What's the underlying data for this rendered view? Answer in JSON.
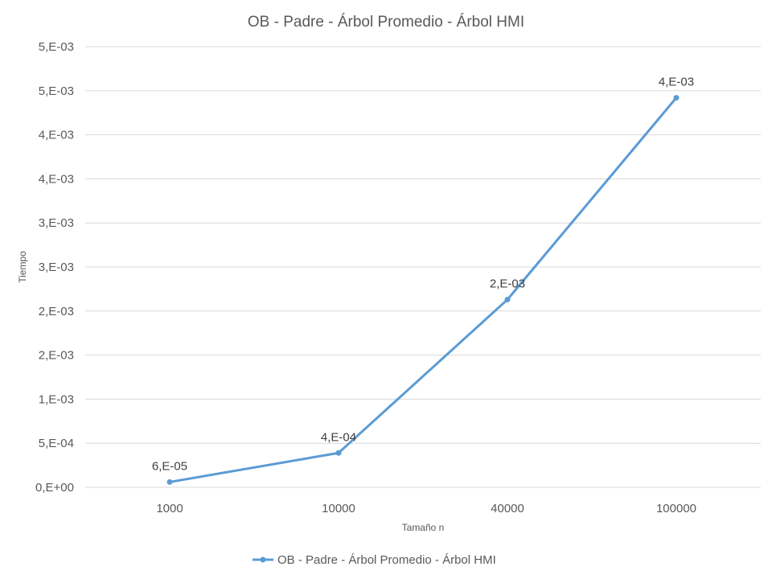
{
  "chart_data": {
    "type": "line",
    "title": "OB - Padre - Árbol Promedio - Árbol HMI",
    "xlabel": "Tamaño n",
    "ylabel": "Tiempo",
    "categories": [
      "1000",
      "10000",
      "40000",
      "100000"
    ],
    "series": [
      {
        "name": "OB - Padre - Árbol Promedio - Árbol HMI",
        "values": [
          6e-05,
          0.00039,
          0.00213,
          0.00442
        ],
        "data_labels": [
          "6,E-05",
          "4,E-04",
          "2,E-03",
          "4,E-03"
        ],
        "color": "#5b9bd5"
      }
    ],
    "ylim": [
      0,
      0.005
    ],
    "y_ticks": [
      {
        "value": 0.0,
        "label": "0,E+00"
      },
      {
        "value": 0.0005,
        "label": "5,E-04"
      },
      {
        "value": 0.001,
        "label": "1,E-03"
      },
      {
        "value": 0.0015,
        "label": "2,E-03"
      },
      {
        "value": 0.002,
        "label": "2,E-03"
      },
      {
        "value": 0.0025,
        "label": "3,E-03"
      },
      {
        "value": 0.003,
        "label": "3,E-03"
      },
      {
        "value": 0.0035,
        "label": "4,E-03"
      },
      {
        "value": 0.004,
        "label": "4,E-03"
      },
      {
        "value": 0.0045,
        "label": "5,E-03"
      },
      {
        "value": 0.005,
        "label": "5,E-03"
      }
    ],
    "grid": true,
    "legend_position": "bottom"
  }
}
